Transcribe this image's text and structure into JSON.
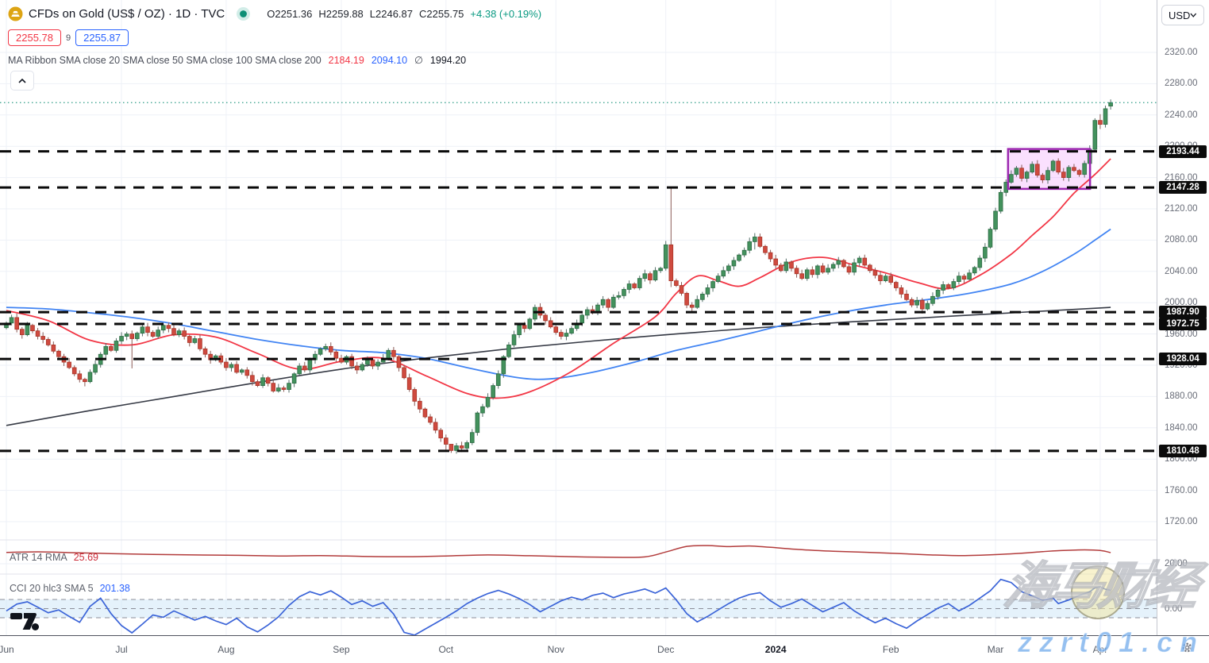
{
  "header": {
    "symbol_title": "CFDs on Gold (US$ / OZ) · 1D · TVC",
    "ohlc": {
      "o_label": "O",
      "o": "2251.36",
      "h_label": "H",
      "h": "2259.88",
      "l_label": "L",
      "l": "2246.87",
      "c_label": "C",
      "c": "2255.75",
      "change": "+4.38 (+0.19%)"
    },
    "sell_price": "2255.78",
    "spread": "9",
    "buy_price": "2255.87",
    "ma_ribbon_label": "MA Ribbon SMA close 20 SMA close 50 SMA close 100 SMA close 200",
    "ma_red_value": "2184.19",
    "ma_blue_value": "2094.10",
    "ma_avg_symbol": "∅",
    "ma_avg_value": "1994.20"
  },
  "price_axis": {
    "currency": "USD",
    "ticks": [
      "2320.00",
      "2280.00",
      "2240.00",
      "2200.00",
      "2160.00",
      "2120.00",
      "2080.00",
      "2040.00",
      "2000.00",
      "1960.00",
      "1920.00",
      "1880.00",
      "1840.00",
      "1800.00",
      "1760.00",
      "1720.00"
    ],
    "tick_prices": [
      2320,
      2280,
      2240,
      2200,
      2160,
      2120,
      2080,
      2040,
      2000,
      1960,
      1920,
      1880,
      1840,
      1800,
      1760,
      1720
    ],
    "atr_tick": {
      "text": "20.00",
      "value": 20
    },
    "cci_tick": {
      "text": "0.00",
      "value": 0
    },
    "level_labels": [
      {
        "text": "2193.44",
        "price": 2193.44
      },
      {
        "text": "2147.28",
        "price": 2147.28
      },
      {
        "text": "1987.90",
        "price": 1987.9
      },
      {
        "text": "1972.75",
        "price": 1972.75
      },
      {
        "text": "1928.04",
        "price": 1928.04
      },
      {
        "text": "1810.48",
        "price": 1810.48
      }
    ]
  },
  "panes": {
    "atr": {
      "label": "ATR 14 RMA",
      "value": "25.69"
    },
    "cci": {
      "label": "CCI 20 hlc3 SMA 5",
      "value": "201.38"
    }
  },
  "watermark": {
    "cn_text": "海马财经",
    "url_text": "zzrt01.cn"
  },
  "colors": {
    "up": "#43925d",
    "up_border": "#2e6b45",
    "down": "#cf4a3f",
    "down_border": "#a83528",
    "wick_up": "#56706a",
    "wick_down": "#8a5a55",
    "sma_red": "#f23645",
    "sma_blue": "#4184f3",
    "sma_black": "#363a45",
    "level_line": "#0a0a0a",
    "current_price_line": "#2e9c87",
    "box_border": "#9c27b0",
    "box_fill": "#e040fb",
    "atr_line": "#b23b3b",
    "cci_line": "#3b64d8",
    "cci_band": "#cfe8f8",
    "grid": "#eef1f7"
  },
  "chart_data": {
    "type": "candlestick",
    "title": "CFDs on Gold (US$ / OZ) 1D TVC",
    "timeframe": "1D",
    "current_bar": {
      "open": 2251.36,
      "high": 2259.88,
      "low": 2246.87,
      "close": 2255.75,
      "change": 4.38,
      "change_pct": 0.19
    },
    "ylim": [
      1712,
      2333
    ],
    "grid_step": 40,
    "price_levels": [
      2193.44,
      2147.28,
      1987.9,
      1972.75,
      1928.04,
      1810.48
    ],
    "current_price_line": 2255.75,
    "highlight_box": {
      "price_top": 2196.5,
      "price_bottom": 2145.5,
      "start_index": 192,
      "end_index": 206
    },
    "months": [
      [
        "Jun",
        0
      ],
      [
        "Jul",
        22
      ],
      [
        "Aug",
        42
      ],
      [
        "Sep",
        64
      ],
      [
        "Oct",
        84
      ],
      [
        "Nov",
        105
      ],
      [
        "Dec",
        126
      ],
      [
        "2024",
        147
      ],
      [
        "Feb",
        169
      ],
      [
        "Mar",
        189
      ],
      [
        "Apr",
        209
      ]
    ],
    "first_open": 1968,
    "closes": [
      1974,
      1981,
      1966,
      1959,
      1971,
      1964,
      1957,
      1953,
      1946,
      1938,
      1931,
      1924,
      1917,
      1909,
      1902,
      1899,
      1911,
      1921,
      1934,
      1944,
      1939,
      1951,
      1957,
      1960,
      1954,
      1961,
      1969,
      1962,
      1957,
      1965,
      1971,
      1967,
      1959,
      1964,
      1957,
      1949,
      1954,
      1941,
      1934,
      1927,
      1932,
      1924,
      1917,
      1921,
      1911,
      1914,
      1907,
      1899,
      1894,
      1904,
      1897,
      1887,
      1891,
      1889,
      1897,
      1909,
      1919,
      1914,
      1927,
      1934,
      1941,
      1944,
      1937,
      1929,
      1924,
      1931,
      1919,
      1914,
      1921,
      1927,
      1919,
      1924,
      1929,
      1939,
      1931,
      1917,
      1904,
      1889,
      1874,
      1864,
      1854,
      1847,
      1837,
      1827,
      1819,
      1811,
      1817,
      1814,
      1821,
      1834,
      1859,
      1867,
      1879,
      1894,
      1909,
      1931,
      1946,
      1959,
      1971,
      1967,
      1979,
      1994,
      1984,
      1977,
      1969,
      1962,
      1957,
      1961,
      1967,
      1974,
      1984,
      1991,
      1987,
      1997,
      2004,
      1994,
      2007,
      2009,
      2017,
      2024,
      2019,
      2031,
      2037,
      2029,
      2041,
      2044,
      2074,
      2028,
      2022,
      2012,
      1997,
      1994,
      2004,
      2011,
      2019,
      2027,
      2034,
      2041,
      2047,
      2054,
      2061,
      2067,
      2078,
      2084,
      2072,
      2064,
      2056,
      2048,
      2041,
      2052,
      2044,
      2037,
      2031,
      2042,
      2036,
      2047,
      2039,
      2044,
      2049,
      2054,
      2046,
      2039,
      2051,
      2057,
      2048,
      2041,
      2035,
      2028,
      2034,
      2026,
      2019,
      2011,
      2004,
      1997,
      2003,
      1992,
      1999,
      2008,
      2016,
      2023,
      2019,
      2027,
      2034,
      2030,
      2038,
      2045,
      2057,
      2071,
      2094,
      2117,
      2141,
      2154,
      2164,
      2172,
      2159,
      2167,
      2177,
      2163,
      2157,
      2169,
      2181,
      2167,
      2160,
      2173,
      2169,
      2164,
      2178,
      2196,
      2233,
      2228,
      2248,
      2255.75
    ],
    "wick_overrides": {
      "15": [
        null,
        1893
      ],
      "24": [
        null,
        1916
      ],
      "51": [
        null,
        1885
      ],
      "78": [
        null,
        1868
      ],
      "84": [
        null,
        1812
      ],
      "85": [
        1817,
        1808
      ],
      "126": [
        2079,
        2041
      ],
      "127": [
        2147.3,
        2020
      ],
      "143": [
        2089,
        2068
      ],
      "175": [
        2006,
        1986
      ],
      "190": [
        2144,
        2114
      ],
      "209": [
        2241,
        2222
      ],
      "210": [
        2252,
        2224
      ]
    },
    "last_candle": [
      2251.36,
      2259.88,
      2246.87,
      2255.75
    ],
    "sma_red_points": [
      [
        0,
        1990
      ],
      [
        8,
        1977
      ],
      [
        16,
        1952
      ],
      [
        24,
        1946
      ],
      [
        32,
        1959
      ],
      [
        40,
        1956
      ],
      [
        48,
        1935
      ],
      [
        56,
        1915
      ],
      [
        64,
        1925
      ],
      [
        72,
        1929
      ],
      [
        80,
        1907
      ],
      [
        88,
        1884
      ],
      [
        94,
        1878
      ],
      [
        100,
        1886
      ],
      [
        108,
        1912
      ],
      [
        116,
        1948
      ],
      [
        124,
        1982
      ],
      [
        128,
        2012
      ],
      [
        132,
        2034
      ],
      [
        136,
        2028
      ],
      [
        140,
        2021
      ],
      [
        144,
        2032
      ],
      [
        150,
        2052
      ],
      [
        156,
        2058
      ],
      [
        162,
        2048
      ],
      [
        168,
        2038
      ],
      [
        174,
        2026
      ],
      [
        180,
        2018
      ],
      [
        186,
        2035
      ],
      [
        192,
        2062
      ],
      [
        196,
        2086
      ],
      [
        200,
        2110
      ],
      [
        204,
        2140
      ],
      [
        208,
        2164
      ],
      [
        211,
        2184
      ]
    ],
    "sma_blue_points": [
      [
        0,
        1994
      ],
      [
        8,
        1992
      ],
      [
        16,
        1987
      ],
      [
        24,
        1981
      ],
      [
        32,
        1973
      ],
      [
        40,
        1963
      ],
      [
        48,
        1953
      ],
      [
        56,
        1945
      ],
      [
        64,
        1939
      ],
      [
        72,
        1936
      ],
      [
        80,
        1929
      ],
      [
        88,
        1917
      ],
      [
        96,
        1906
      ],
      [
        101,
        1902
      ],
      [
        106,
        1904
      ],
      [
        112,
        1911
      ],
      [
        120,
        1924
      ],
      [
        128,
        1939
      ],
      [
        136,
        1951
      ],
      [
        144,
        1964
      ],
      [
        152,
        1977
      ],
      [
        160,
        1988
      ],
      [
        168,
        1997
      ],
      [
        176,
        2004
      ],
      [
        184,
        2012
      ],
      [
        192,
        2024
      ],
      [
        198,
        2040
      ],
      [
        204,
        2062
      ],
      [
        208,
        2080
      ],
      [
        211,
        2094
      ]
    ],
    "sma_black_points": [
      [
        0,
        1843
      ],
      [
        16,
        1862
      ],
      [
        32,
        1880
      ],
      [
        48,
        1898
      ],
      [
        64,
        1915
      ],
      [
        80,
        1929
      ],
      [
        96,
        1941
      ],
      [
        112,
        1951
      ],
      [
        128,
        1960
      ],
      [
        144,
        1968
      ],
      [
        160,
        1975
      ],
      [
        176,
        1981
      ],
      [
        192,
        1987
      ],
      [
        211,
        1994
      ]
    ],
    "atr": {
      "last": 25.69,
      "points": [
        [
          0,
          25.8
        ],
        [
          6,
          26.1
        ],
        [
          12,
          25.7
        ],
        [
          20,
          25.2
        ],
        [
          28,
          24.8
        ],
        [
          36,
          24.5
        ],
        [
          44,
          24.3
        ],
        [
          52,
          24.0
        ],
        [
          60,
          24.2
        ],
        [
          68,
          23.8
        ],
        [
          76,
          23.6
        ],
        [
          84,
          24.0
        ],
        [
          92,
          24.5
        ],
        [
          100,
          24.1
        ],
        [
          108,
          23.6
        ],
        [
          116,
          23.3
        ],
        [
          122,
          23.5
        ],
        [
          126,
          26.0
        ],
        [
          130,
          28.9
        ],
        [
          134,
          29.3
        ],
        [
          138,
          28.8
        ],
        [
          142,
          29.1
        ],
        [
          146,
          28.4
        ],
        [
          152,
          27.2
        ],
        [
          158,
          26.4
        ],
        [
          164,
          25.9
        ],
        [
          170,
          25.3
        ],
        [
          176,
          24.6
        ],
        [
          182,
          24.2
        ],
        [
          188,
          24.6
        ],
        [
          194,
          25.4
        ],
        [
          198,
          26.2
        ],
        [
          202,
          26.8
        ],
        [
          206,
          27.1
        ],
        [
          209,
          26.8
        ],
        [
          211,
          25.69
        ]
      ]
    },
    "cci": {
      "last": 201.38,
      "band": [
        -100,
        100
      ],
      "points": [
        [
          0,
          -25
        ],
        [
          2,
          50
        ],
        [
          4,
          75
        ],
        [
          6,
          15
        ],
        [
          8,
          -45
        ],
        [
          10,
          -15
        ],
        [
          12,
          -85
        ],
        [
          14,
          -150
        ],
        [
          16,
          25
        ],
        [
          18,
          115
        ],
        [
          20,
          -55
        ],
        [
          22,
          -185
        ],
        [
          24,
          -265
        ],
        [
          26,
          -170
        ],
        [
          28,
          -70
        ],
        [
          30,
          -95
        ],
        [
          32,
          -25
        ],
        [
          34,
          -75
        ],
        [
          36,
          -125
        ],
        [
          38,
          -85
        ],
        [
          40,
          -135
        ],
        [
          42,
          -175
        ],
        [
          44,
          -105
        ],
        [
          46,
          -200
        ],
        [
          48,
          -255
        ],
        [
          50,
          -180
        ],
        [
          52,
          -90
        ],
        [
          54,
          35
        ],
        [
          56,
          130
        ],
        [
          58,
          185
        ],
        [
          60,
          150
        ],
        [
          62,
          195
        ],
        [
          64,
          125
        ],
        [
          66,
          45
        ],
        [
          68,
          85
        ],
        [
          70,
          25
        ],
        [
          72,
          65
        ],
        [
          74,
          -60
        ],
        [
          76,
          -260
        ],
        [
          78,
          -290
        ],
        [
          80,
          -225
        ],
        [
          82,
          -160
        ],
        [
          84,
          -95
        ],
        [
          86,
          -25
        ],
        [
          88,
          55
        ],
        [
          90,
          115
        ],
        [
          92,
          165
        ],
        [
          94,
          200
        ],
        [
          96,
          160
        ],
        [
          98,
          110
        ],
        [
          100,
          45
        ],
        [
          102,
          -35
        ],
        [
          104,
          25
        ],
        [
          106,
          85
        ],
        [
          108,
          125
        ],
        [
          110,
          95
        ],
        [
          112,
          145
        ],
        [
          114,
          170
        ],
        [
          116,
          120
        ],
        [
          118,
          160
        ],
        [
          120,
          185
        ],
        [
          122,
          215
        ],
        [
          124,
          170
        ],
        [
          126,
          225
        ],
        [
          128,
          95
        ],
        [
          130,
          -55
        ],
        [
          132,
          -145
        ],
        [
          134,
          -85
        ],
        [
          136,
          -15
        ],
        [
          138,
          55
        ],
        [
          140,
          115
        ],
        [
          142,
          155
        ],
        [
          144,
          175
        ],
        [
          146,
          85
        ],
        [
          148,
          15
        ],
        [
          150,
          55
        ],
        [
          152,
          105
        ],
        [
          154,
          35
        ],
        [
          156,
          -35
        ],
        [
          158,
          15
        ],
        [
          160,
          65
        ],
        [
          162,
          -25
        ],
        [
          164,
          -95
        ],
        [
          166,
          -155
        ],
        [
          168,
          -105
        ],
        [
          170,
          -165
        ],
        [
          172,
          -215
        ],
        [
          174,
          -135
        ],
        [
          176,
          -65
        ],
        [
          178,
          5
        ],
        [
          180,
          55
        ],
        [
          182,
          -25
        ],
        [
          184,
          35
        ],
        [
          186,
          115
        ],
        [
          188,
          195
        ],
        [
          190,
          320
        ],
        [
          192,
          285
        ],
        [
          194,
          185
        ],
        [
          196,
          140
        ],
        [
          198,
          90
        ],
        [
          200,
          115
        ],
        [
          201,
          55
        ],
        [
          203,
          95
        ],
        [
          205,
          145
        ],
        [
          207,
          185
        ],
        [
          208,
          228
        ],
        [
          209,
          238
        ],
        [
          210,
          212
        ],
        [
          211,
          201.38
        ]
      ]
    }
  }
}
